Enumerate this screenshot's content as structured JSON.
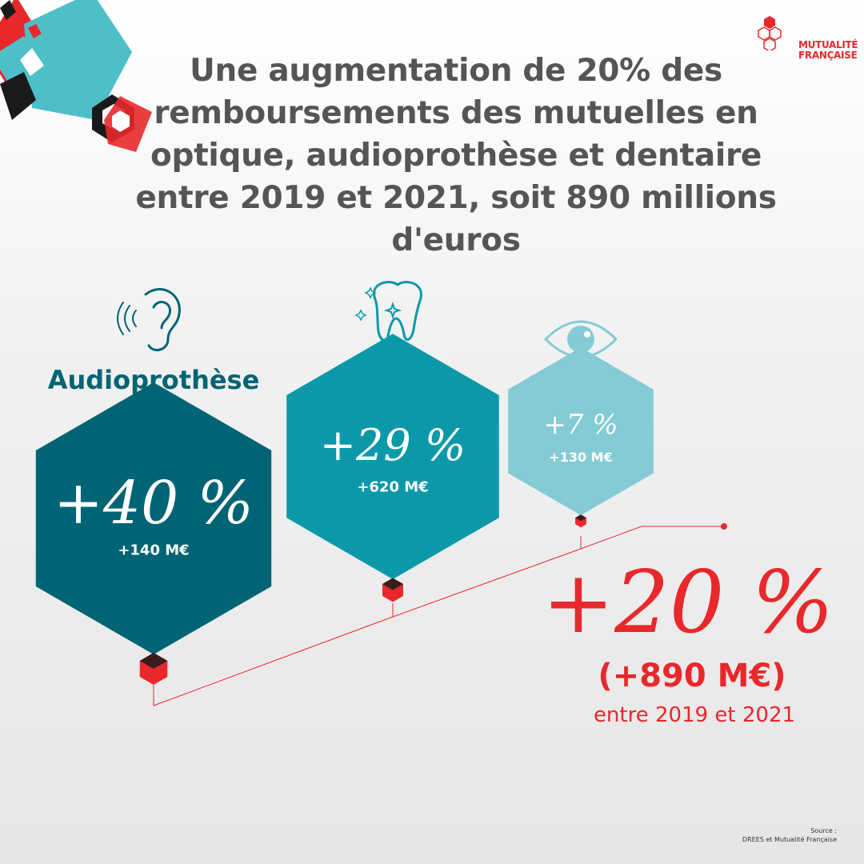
{
  "title": "Une augmentation de 20% des remboursements des mutuelles en optique, audioprothèse et dentaire entre 2019 et 2021, soit 890 millions d'euros",
  "logo": {
    "line1": "MUTUALITÉ",
    "line2": "FRANÇAISE",
    "color": "#e8282b"
  },
  "icons": {
    "audioprothese": "ear-icon",
    "dentaire": "tooth-icon",
    "optique": "eye-icon"
  },
  "chart_data": {
    "type": "bar",
    "categories": [
      "Audioprothèse",
      "Dentaire",
      "Optique"
    ],
    "values": [
      40,
      29,
      7
    ],
    "value_labels": [
      "+40 %",
      "+29 %",
      "+7 %"
    ],
    "amount_labels": [
      "+140 M€",
      "+620 M€",
      "+130 M€"
    ],
    "amounts_meur": [
      140,
      620,
      130
    ],
    "colors": [
      "#006474",
      "#0b99a9",
      "#84cbd5"
    ],
    "total": {
      "value": 20,
      "value_label": "+20 %",
      "amount_label": "(+890 M€)",
      "amount_meur": 890,
      "period": "entre 2019 et 2021",
      "color": "#e8282b"
    }
  },
  "source": {
    "label": "Source :",
    "text": "DREES et Mutualité Française"
  }
}
